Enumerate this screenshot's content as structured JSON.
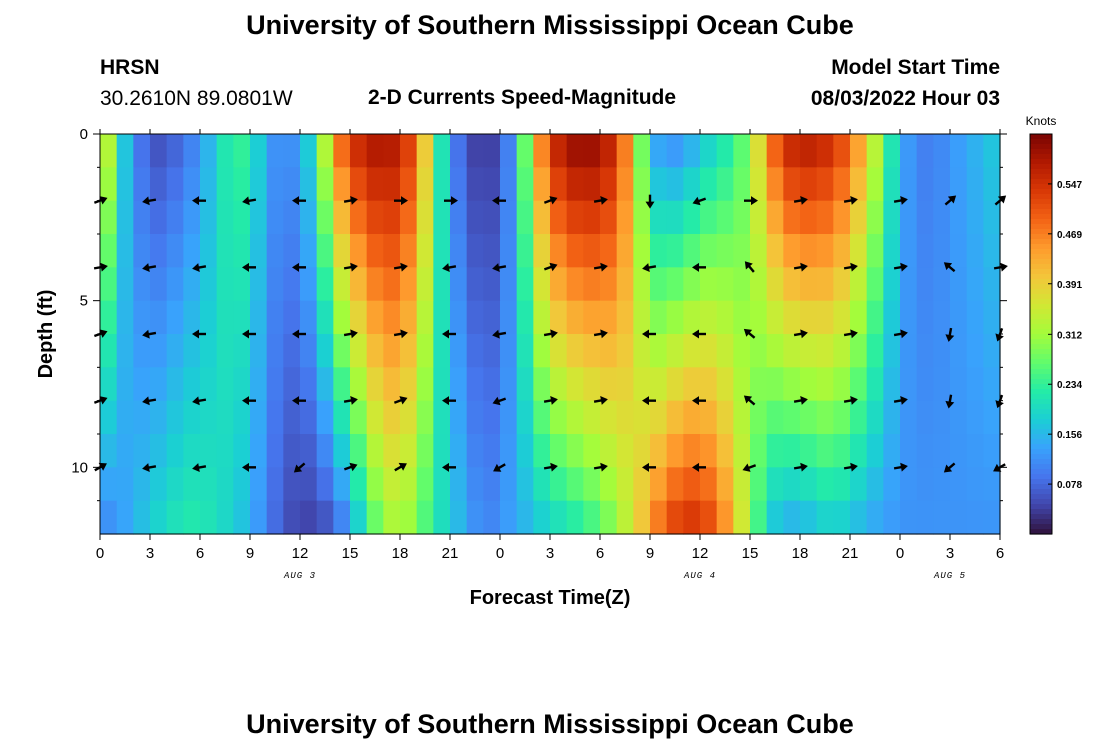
{
  "header": {
    "title": "University of Southern Mississippi Ocean Cube",
    "station": "HRSN",
    "coordinates": "30.2610N  89.0801W",
    "subtitle": "2-D Currents Speed-Magnitude",
    "model_start_label": "Model Start Time",
    "model_start_value": "08/03/2022 Hour 03"
  },
  "footer": {
    "title": "University of Southern Mississippi Ocean Cube"
  },
  "chart_data": {
    "type": "heatmap",
    "title": "2-D Currents Speed-Magnitude",
    "xlabel": "Forecast Time(Z)",
    "ylabel": "Depth (ft)",
    "x_range_hours": [
      0,
      54
    ],
    "y_range_ft": [
      0,
      12
    ],
    "x_tick_labels": [
      "0",
      "3",
      "6",
      "9",
      "12",
      "15",
      "18",
      "21",
      "0",
      "3",
      "6",
      "9",
      "12",
      "15",
      "18",
      "21",
      "0",
      "3",
      "6"
    ],
    "y_tick_labels": [
      "0",
      "5",
      "10"
    ],
    "y_tick_values": [
      0,
      5,
      10
    ],
    "date_labels": [
      {
        "text": "AUG 3",
        "hour": 12
      },
      {
        "text": "AUG 4",
        "hour": 36
      },
      {
        "text": "AUG 5",
        "hour": 51
      }
    ],
    "colorbar": {
      "title": "Knots",
      "ticks": [
        "0.078",
        "0.156",
        "0.234",
        "0.312",
        "0.391",
        "0.469",
        "0.547"
      ],
      "tick_values": [
        0.078,
        0.156,
        0.234,
        0.312,
        0.391,
        0.469,
        0.547
      ],
      "min": 0.0,
      "max": 0.625,
      "colors": [
        "#30123b",
        "#4145ab",
        "#4675ed",
        "#39a2fc",
        "#1bcfd4",
        "#24eca6",
        "#61fc6c",
        "#a4fc3b",
        "#d1e834",
        "#f3c63a",
        "#fe9b2d",
        "#f36315",
        "#d93806",
        "#b11901",
        "#7a0403"
      ]
    },
    "speed_grid_note": "speed values in knots; rows = depth levels 0..12 ft, columns = forecast hours 0..54",
    "depth_levels": [
      0,
      1,
      2,
      3,
      4,
      5,
      6,
      7,
      8,
      9,
      10,
      11,
      12
    ],
    "hours": [
      0,
      1,
      2,
      3,
      4,
      5,
      6,
      7,
      8,
      9,
      10,
      11,
      12,
      13,
      14,
      15,
      16,
      17,
      18,
      19,
      20,
      21,
      22,
      23,
      24,
      25,
      26,
      27,
      28,
      29,
      30,
      31,
      32,
      33,
      34,
      35,
      36,
      37,
      38,
      39,
      40,
      41,
      42,
      43,
      44,
      45,
      46,
      47,
      48,
      49,
      50,
      51,
      52,
      53,
      54
    ],
    "speed_profile": {
      "anchor_hours": [
        0,
        1,
        2,
        3,
        4,
        5,
        6,
        7,
        8,
        9,
        10,
        11,
        12,
        13,
        14,
        15,
        16,
        17,
        18,
        19,
        20,
        21,
        22,
        23,
        24,
        25,
        26,
        27,
        28,
        29,
        30,
        31,
        32,
        33,
        34,
        35,
        36,
        37,
        38,
        39,
        40,
        41,
        42,
        43,
        44,
        45,
        46,
        47,
        48,
        49,
        50,
        51,
        52,
        53,
        54
      ],
      "surface": [
        0.45,
        0.22,
        0.12,
        0.05,
        0.06,
        0.08,
        0.12,
        0.18,
        0.25,
        0.22,
        0.14,
        0.1,
        0.14,
        0.22,
        0.45,
        0.55,
        0.58,
        0.6,
        0.57,
        0.5,
        0.3,
        0.12,
        0.05,
        0.03,
        0.05,
        0.15,
        0.4,
        0.55,
        0.6,
        0.62,
        0.6,
        0.55,
        0.4,
        0.15,
        0.1,
        0.12,
        0.15,
        0.2,
        0.22,
        0.3,
        0.45,
        0.56,
        0.58,
        0.58,
        0.55,
        0.5,
        0.4,
        0.28,
        0.15,
        0.1,
        0.1,
        0.12,
        0.14,
        0.16,
        0.18
      ],
      "bottom": [
        0.1,
        0.12,
        0.15,
        0.18,
        0.2,
        0.22,
        0.22,
        0.2,
        0.18,
        0.15,
        0.1,
        0.06,
        0.04,
        0.04,
        0.06,
        0.12,
        0.22,
        0.3,
        0.32,
        0.28,
        0.22,
        0.18,
        0.14,
        0.1,
        0.12,
        0.14,
        0.16,
        0.18,
        0.2,
        0.22,
        0.25,
        0.3,
        0.36,
        0.45,
        0.52,
        0.55,
        0.55,
        0.5,
        0.42,
        0.3,
        0.18,
        0.14,
        0.14,
        0.16,
        0.18,
        0.16,
        0.14,
        0.13,
        0.12,
        0.12,
        0.12,
        0.12,
        0.12,
        0.12,
        0.12
      ]
    },
    "vector_rows_ft": [
      2,
      4,
      6,
      8,
      10
    ],
    "vector_columns_hours": [
      0,
      3,
      6,
      9,
      12,
      15,
      18,
      21,
      24,
      27,
      30,
      33,
      36,
      39,
      42,
      45,
      48,
      51,
      54
    ],
    "vector_direction_deg": [
      [
        20,
        190,
        180,
        190,
        180,
        10,
        0,
        0,
        180,
        20,
        10,
        270,
        200,
        360,
        10,
        10,
        10,
        40,
        40
      ],
      [
        10,
        190,
        190,
        180,
        180,
        10,
        10,
        190,
        190,
        20,
        10,
        190,
        180,
        130,
        10,
        10,
        10,
        140,
        10
      ],
      [
        20,
        190,
        180,
        180,
        180,
        10,
        10,
        180,
        190,
        10,
        10,
        180,
        180,
        140,
        10,
        10,
        10,
        260,
        250
      ],
      [
        20,
        190,
        190,
        180,
        180,
        10,
        20,
        180,
        200,
        10,
        10,
        180,
        180,
        140,
        10,
        10,
        10,
        260,
        250
      ],
      [
        30,
        190,
        190,
        180,
        220,
        20,
        30,
        180,
        210,
        10,
        10,
        180,
        180,
        200,
        10,
        10,
        10,
        220,
        210
      ]
    ]
  }
}
